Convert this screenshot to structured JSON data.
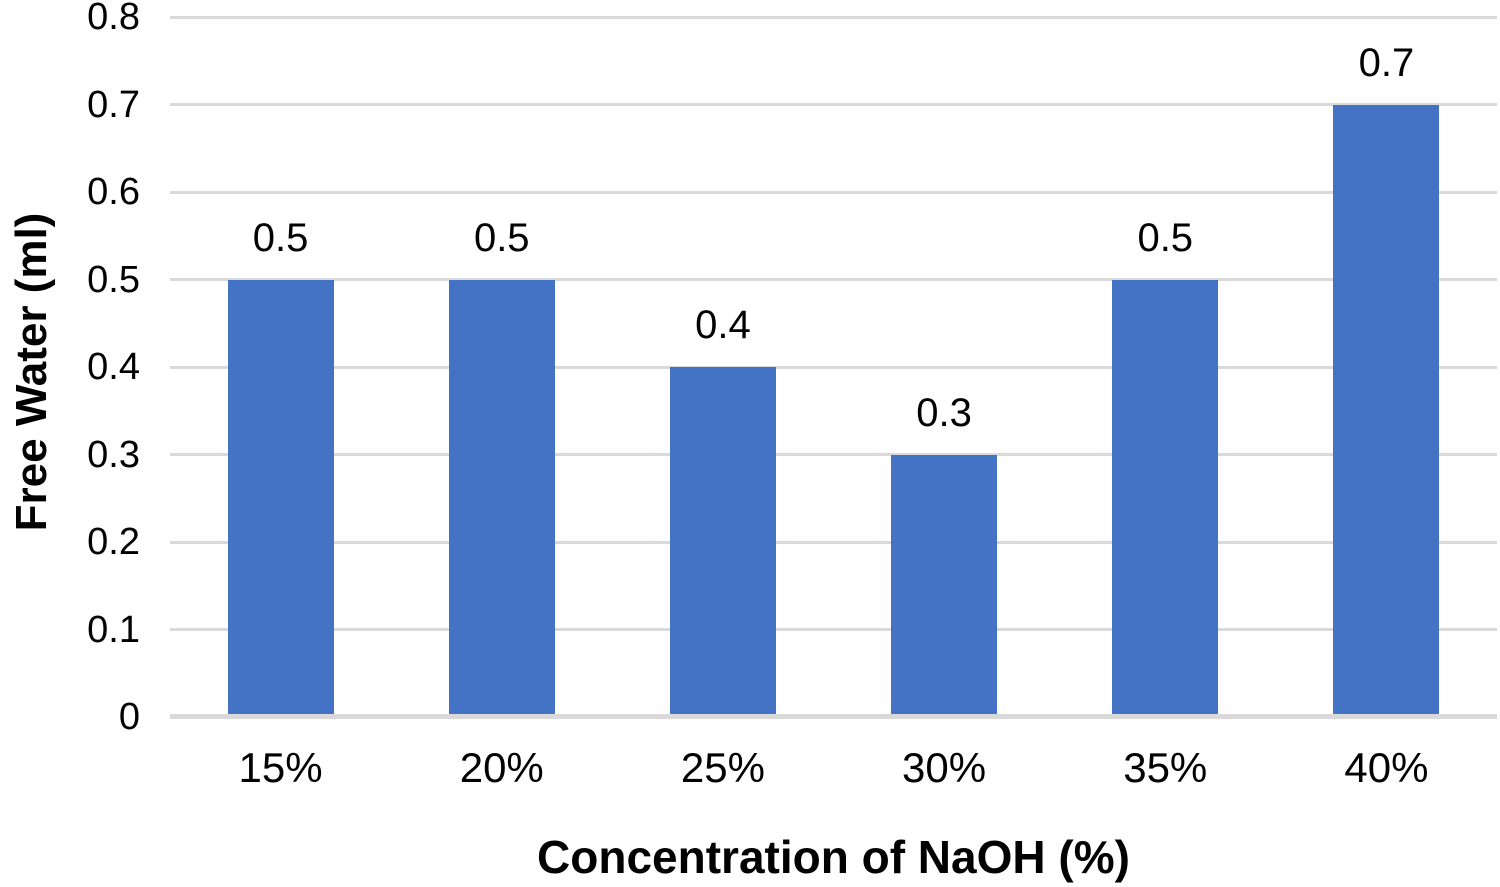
{
  "chart_data": {
    "type": "bar",
    "title": "",
    "xlabel": "Concentration of NaOH (%)",
    "ylabel": "Free Water (ml)",
    "categories": [
      "15%",
      "20%",
      "25%",
      "30%",
      "35%",
      "40%"
    ],
    "values": [
      0.5,
      0.5,
      0.4,
      0.3,
      0.5,
      0.7
    ],
    "value_labels": [
      "0.5",
      "0.5",
      "0.4",
      "0.3",
      "0.5",
      "0.7"
    ],
    "ylim": [
      0,
      0.8
    ],
    "y_ticks": [
      {
        "label": "0",
        "value": 0
      },
      {
        "label": "0.1",
        "value": 0.1
      },
      {
        "label": "0.2",
        "value": 0.2
      },
      {
        "label": "0.3",
        "value": 0.3
      },
      {
        "label": "0.4",
        "value": 0.4
      },
      {
        "label": "0.5",
        "value": 0.5
      },
      {
        "label": "0.6",
        "value": 0.6
      },
      {
        "label": "0.7",
        "value": 0.7
      },
      {
        "label": "0.8",
        "value": 0.8
      }
    ],
    "grid": true,
    "legend_position": "none",
    "colors": {
      "bar": "#4472C4",
      "gridline": "#D9D9D9",
      "axis_line": "#D9D9D9",
      "text": "#000000",
      "background": "#FFFFFF"
    }
  }
}
